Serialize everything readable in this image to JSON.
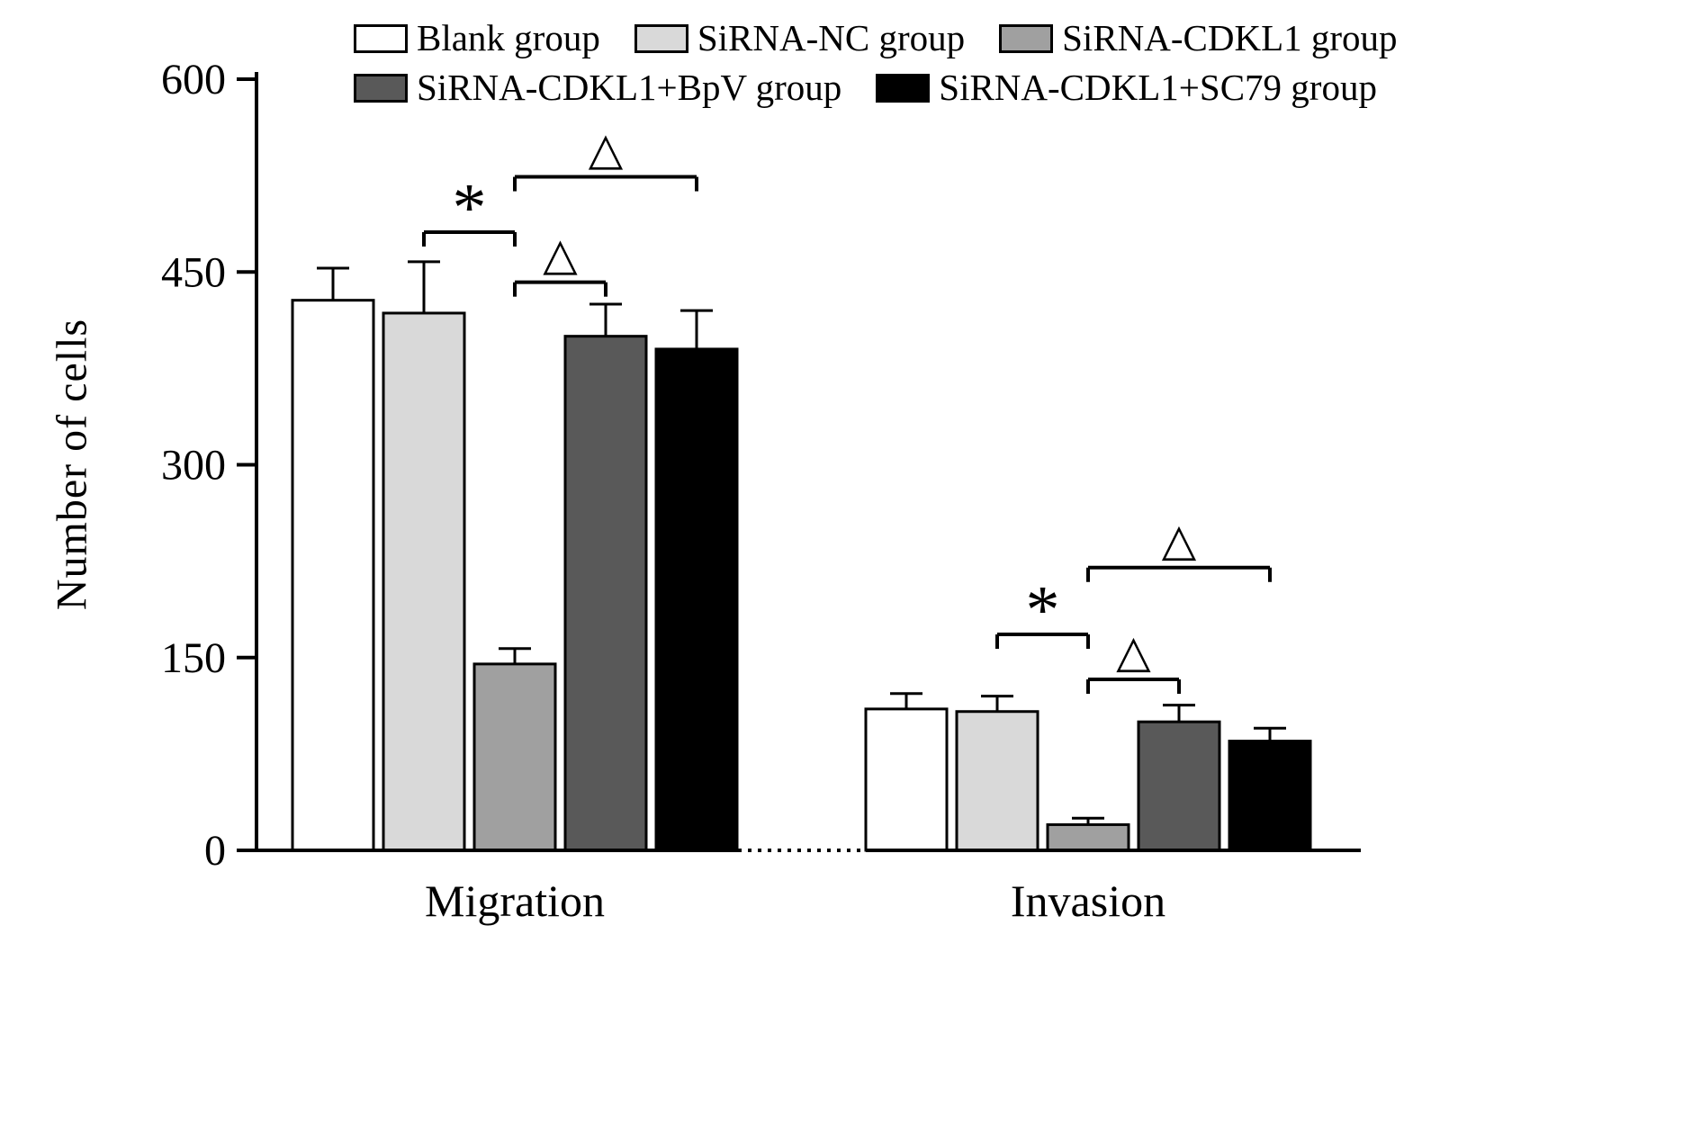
{
  "figure": {
    "background": "#ffffff",
    "axis_color": "#000000"
  },
  "chart_data": {
    "type": "bar",
    "title": "",
    "xlabel": "",
    "ylabel": "Number of cells",
    "ylim": [
      0,
      600
    ],
    "yticks": [
      0,
      150,
      300,
      450,
      600
    ],
    "categories": [
      "Migration",
      "Invasion"
    ],
    "grid": false,
    "legend_position": "top",
    "legend_rows": [
      3,
      2
    ],
    "series": [
      {
        "name": "Blank group",
        "color": "#ffffff",
        "values": [
          428,
          110
        ],
        "errors": [
          25,
          12
        ]
      },
      {
        "name": "SiRNA-NC group",
        "color": "#d9d9d9",
        "values": [
          418,
          108
        ],
        "errors": [
          40,
          12
        ]
      },
      {
        "name": "SiRNA-CDKL1 group",
        "color": "#a0a0a0",
        "values": [
          145,
          20
        ],
        "errors": [
          12,
          5
        ]
      },
      {
        "name": "SiRNA-CDKL1+BpV group",
        "color": "#595959",
        "values": [
          400,
          100
        ],
        "errors": [
          25,
          13
        ]
      },
      {
        "name": "SiRNA-CDKL1+SC79 group",
        "color": "#000000",
        "values": [
          390,
          85
        ],
        "errors": [
          30,
          10
        ]
      }
    ],
    "annotations": [
      {
        "category": 0,
        "from": 1,
        "to": 2,
        "y": 481,
        "label": "*"
      },
      {
        "category": 0,
        "from": 2,
        "to": 3,
        "y": 442,
        "label": "△"
      },
      {
        "category": 0,
        "from": 2,
        "to": 4,
        "y": 524,
        "label": "△"
      },
      {
        "category": 1,
        "from": 1,
        "to": 2,
        "y": 168,
        "label": "*"
      },
      {
        "category": 1,
        "from": 2,
        "to": 3,
        "y": 133,
        "label": "△"
      },
      {
        "category": 1,
        "from": 2,
        "to": 4,
        "y": 220,
        "label": "△"
      }
    ]
  }
}
